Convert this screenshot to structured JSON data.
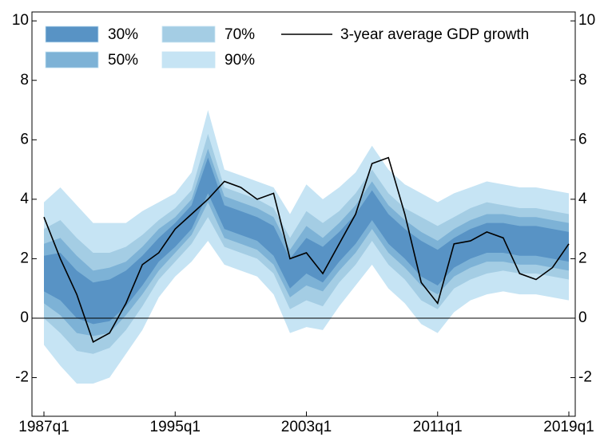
{
  "chart_data": {
    "type": "fan",
    "categories": [
      "1987q1",
      null,
      null,
      null,
      null,
      null,
      null,
      null,
      "1995q1",
      null,
      null,
      null,
      null,
      null,
      null,
      null,
      "2003q1",
      null,
      null,
      null,
      null,
      null,
      null,
      null,
      "2011q1",
      null,
      null,
      null,
      null,
      null,
      null,
      null,
      "2019q1"
    ],
    "bands": [
      {
        "name": "90%",
        "color": "#c6e4f4",
        "lower": [
          -0.9,
          -1.6,
          -2.2,
          -2.2,
          -2.0,
          -1.2,
          -0.4,
          0.7,
          1.4,
          1.9,
          2.6,
          1.8,
          1.6,
          1.4,
          0.8,
          -0.5,
          -0.3,
          -0.4,
          0.4,
          1.1,
          1.8,
          1.0,
          0.5,
          -0.2,
          -0.5,
          0.2,
          0.6,
          0.8,
          0.9,
          0.8,
          0.8,
          0.7,
          0.6
        ],
        "upper": [
          3.9,
          4.4,
          3.8,
          3.2,
          3.2,
          3.2,
          3.6,
          3.9,
          4.2,
          4.9,
          7.0,
          5.0,
          4.8,
          4.6,
          4.4,
          3.5,
          4.5,
          4.0,
          4.4,
          4.9,
          5.8,
          5.0,
          4.5,
          4.2,
          3.9,
          4.2,
          4.4,
          4.6,
          4.5,
          4.4,
          4.4,
          4.3,
          4.2
        ]
      },
      {
        "name": "70%",
        "color": "#a4cde4",
        "lower": [
          0.0,
          -0.5,
          -1.1,
          -1.2,
          -1.0,
          -0.4,
          0.4,
          1.3,
          1.9,
          2.5,
          3.4,
          2.4,
          2.2,
          2.0,
          1.5,
          0.3,
          0.6,
          0.4,
          1.2,
          1.8,
          2.6,
          1.8,
          1.3,
          0.6,
          0.3,
          1.0,
          1.3,
          1.5,
          1.6,
          1.5,
          1.5,
          1.4,
          1.3
        ],
        "upper": [
          3.0,
          3.3,
          2.7,
          2.2,
          2.2,
          2.4,
          2.8,
          3.3,
          3.7,
          4.3,
          6.2,
          4.4,
          4.2,
          4.0,
          3.7,
          2.7,
          3.6,
          3.2,
          3.6,
          4.2,
          5.0,
          4.2,
          3.7,
          3.4,
          3.1,
          3.4,
          3.7,
          3.9,
          3.8,
          3.7,
          3.7,
          3.6,
          3.5
        ]
      },
      {
        "name": "50%",
        "color": "#7db2d6",
        "lower": [
          0.5,
          0.1,
          -0.5,
          -0.6,
          -0.5,
          0.1,
          0.8,
          1.6,
          2.2,
          2.8,
          3.9,
          2.7,
          2.5,
          2.3,
          1.8,
          0.7,
          1.1,
          0.9,
          1.6,
          2.2,
          3.0,
          2.2,
          1.7,
          1.1,
          0.8,
          1.4,
          1.7,
          1.9,
          1.9,
          1.8,
          1.8,
          1.7,
          1.6
        ],
        "upper": [
          2.5,
          2.7,
          2.1,
          1.6,
          1.7,
          1.9,
          2.4,
          3.0,
          3.4,
          4.0,
          5.7,
          4.1,
          3.9,
          3.7,
          3.4,
          2.3,
          3.1,
          2.7,
          3.2,
          3.8,
          4.6,
          3.8,
          3.3,
          2.9,
          2.6,
          3.0,
          3.3,
          3.5,
          3.5,
          3.4,
          3.4,
          3.3,
          3.2
        ]
      },
      {
        "name": "30%",
        "color": "#5893c5",
        "lower": [
          0.9,
          0.6,
          0.0,
          -0.2,
          -0.1,
          0.4,
          1.1,
          1.9,
          2.4,
          3.0,
          4.2,
          3.0,
          2.8,
          2.6,
          2.1,
          1.0,
          1.5,
          1.2,
          1.9,
          2.5,
          3.3,
          2.5,
          2.0,
          1.4,
          1.1,
          1.7,
          2.0,
          2.2,
          2.2,
          2.1,
          2.1,
          2.0,
          1.9
        ],
        "upper": [
          2.1,
          2.2,
          1.6,
          1.2,
          1.3,
          1.6,
          2.1,
          2.7,
          3.2,
          3.8,
          5.4,
          3.8,
          3.6,
          3.4,
          3.1,
          2.0,
          2.7,
          2.4,
          2.9,
          3.5,
          4.3,
          3.5,
          3.0,
          2.6,
          2.3,
          2.7,
          3.0,
          3.2,
          3.2,
          3.1,
          3.1,
          3.0,
          2.9
        ]
      }
    ],
    "series": [
      {
        "name": "3-year average GDP growth",
        "color": "#000000",
        "values": [
          3.4,
          2.0,
          0.8,
          -0.8,
          -0.5,
          0.5,
          1.8,
          2.2,
          3.0,
          3.5,
          4.0,
          4.6,
          4.4,
          4.0,
          4.2,
          2.0,
          2.2,
          1.5,
          2.5,
          3.5,
          5.2,
          5.4,
          3.5,
          1.2,
          0.5,
          2.5,
          2.6,
          2.9,
          2.7,
          1.5,
          1.3,
          1.7,
          2.5
        ]
      }
    ],
    "ylim": [
      -3.3,
      10.3
    ],
    "yticks": [
      -2,
      0,
      2,
      4,
      6,
      8,
      10
    ]
  }
}
